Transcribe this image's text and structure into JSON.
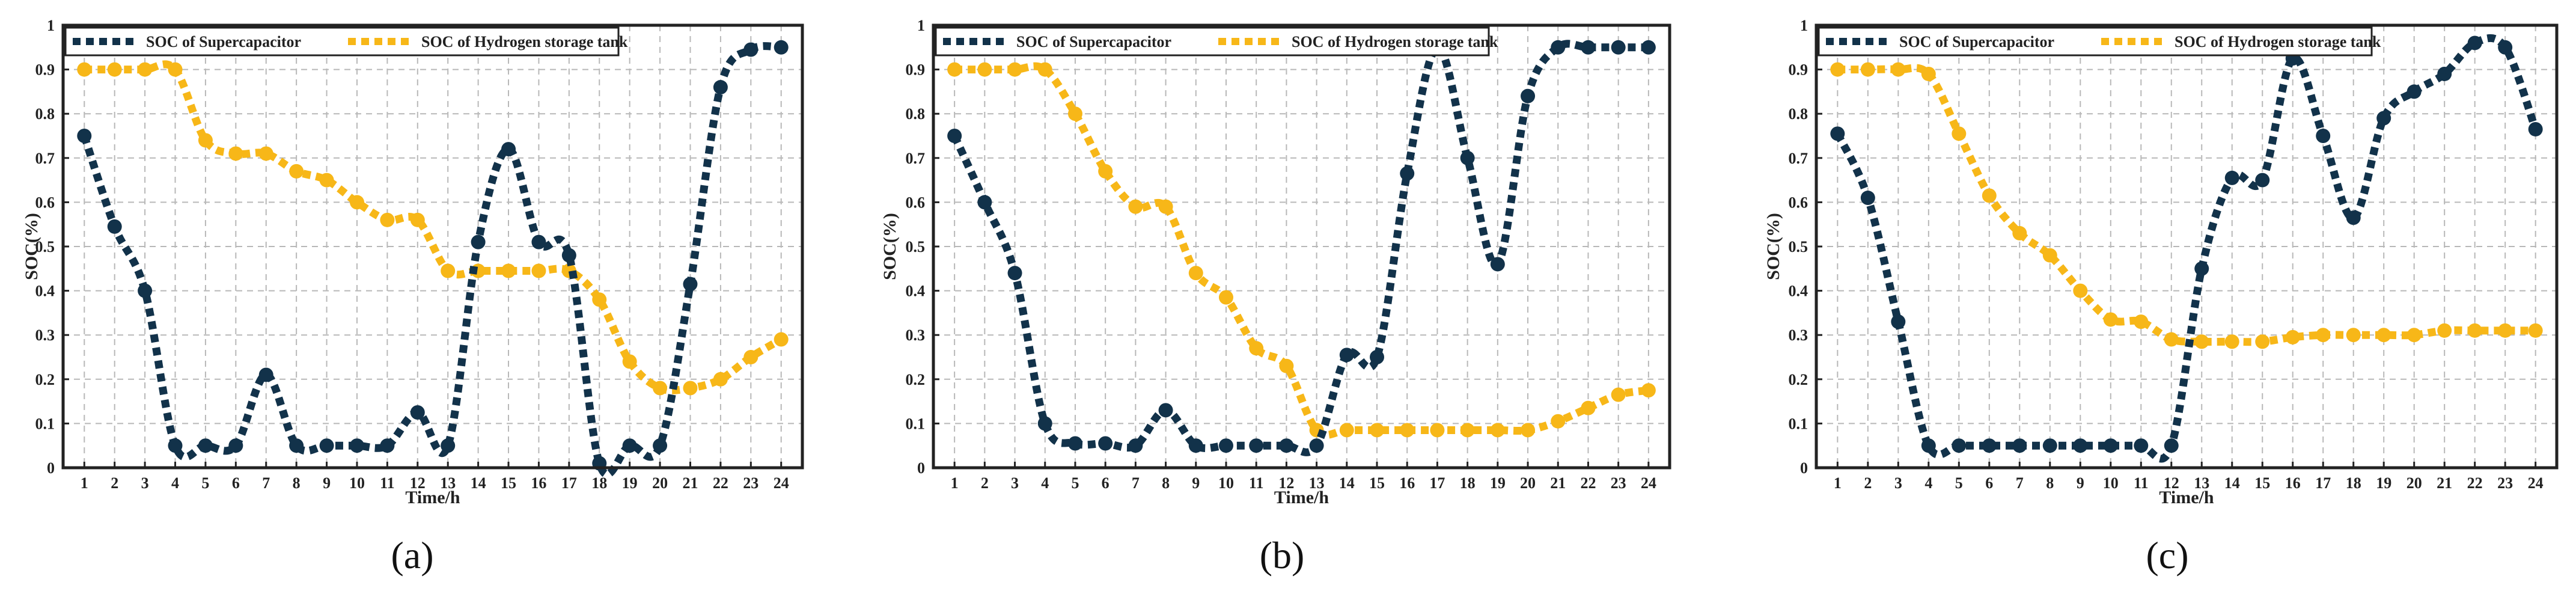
{
  "figure": {
    "panel_labels": [
      "(a)",
      "(b)",
      "(c)"
    ]
  },
  "colors": {
    "supercapacitor": "#12324a",
    "hydrogen": "#f7b718",
    "grid": "#b8b8b8",
    "frame": "#222222"
  },
  "chart_data": [
    {
      "type": "line",
      "panel": "(a)",
      "xlabel": "Time/h",
      "ylabel": "SOC(%)",
      "x": [
        1,
        2,
        3,
        4,
        5,
        6,
        7,
        8,
        9,
        10,
        11,
        12,
        13,
        14,
        15,
        16,
        17,
        18,
        19,
        20,
        21,
        22,
        23,
        24
      ],
      "xlim": [
        0.3,
        24.7
      ],
      "ylim": [
        0,
        1
      ],
      "yticks": [
        "0",
        "0.1",
        "0.2",
        "0.3",
        "0.4",
        "0.5",
        "0.6",
        "0.7",
        "0.8",
        "0.9",
        "1"
      ],
      "grid": true,
      "legend_position": "top-left",
      "series": [
        {
          "name": "SOC of Supercapacitor",
          "color_key": "supercapacitor",
          "values": [
            0.75,
            0.545,
            0.4,
            0.05,
            0.05,
            0.05,
            0.21,
            0.05,
            0.05,
            0.05,
            0.05,
            0.125,
            0.05,
            0.51,
            0.72,
            0.51,
            0.48,
            0.01,
            0.05,
            0.05,
            0.415,
            0.86,
            0.945,
            0.95
          ]
        },
        {
          "name": "SOC of Hydrogen storage tank",
          "color_key": "hydrogen",
          "values": [
            0.9,
            0.9,
            0.9,
            0.9,
            0.74,
            0.71,
            0.71,
            0.67,
            0.65,
            0.6,
            0.56,
            0.56,
            0.445,
            0.445,
            0.445,
            0.445,
            0.445,
            0.38,
            0.24,
            0.18,
            0.18,
            0.2,
            0.25,
            0.29
          ]
        }
      ]
    },
    {
      "type": "line",
      "panel": "(b)",
      "xlabel": "Time/h",
      "ylabel": "SOC(%)",
      "x": [
        1,
        2,
        3,
        4,
        5,
        6,
        7,
        8,
        9,
        10,
        11,
        12,
        13,
        14,
        15,
        16,
        17,
        18,
        19,
        20,
        21,
        22,
        23,
        24
      ],
      "xlim": [
        0.3,
        24.7
      ],
      "ylim": [
        0,
        1
      ],
      "yticks": [
        "0",
        "0.1",
        "0.2",
        "0.3",
        "0.4",
        "0.5",
        "0.6",
        "0.7",
        "0.8",
        "0.9",
        "1"
      ],
      "grid": true,
      "legend_position": "top-left",
      "series": [
        {
          "name": "SOC of Supercapacitor",
          "color_key": "supercapacitor",
          "values": [
            0.75,
            0.6,
            0.44,
            0.1,
            0.055,
            0.055,
            0.05,
            0.13,
            0.05,
            0.05,
            0.05,
            0.05,
            0.05,
            0.255,
            0.25,
            0.665,
            0.95,
            0.7,
            0.46,
            0.84,
            0.95,
            0.95,
            0.95,
            0.95
          ]
        },
        {
          "name": "SOC of Hydrogen storage tank",
          "color_key": "hydrogen",
          "values": [
            0.9,
            0.9,
            0.9,
            0.9,
            0.8,
            0.67,
            0.59,
            0.59,
            0.44,
            0.385,
            0.27,
            0.23,
            0.085,
            0.085,
            0.085,
            0.085,
            0.085,
            0.085,
            0.085,
            0.085,
            0.105,
            0.135,
            0.165,
            0.175
          ]
        }
      ]
    },
    {
      "type": "line",
      "panel": "(c)",
      "xlabel": "Time/h",
      "ylabel": "SOC(%)",
      "x": [
        1,
        2,
        3,
        4,
        5,
        6,
        7,
        8,
        9,
        10,
        11,
        12,
        13,
        14,
        15,
        16,
        17,
        18,
        19,
        20,
        21,
        22,
        23,
        24
      ],
      "xlim": [
        0.3,
        24.7
      ],
      "ylim": [
        0,
        1
      ],
      "yticks": [
        "0",
        "0.1",
        "0.2",
        "0.3",
        "0.4",
        "0.5",
        "0.6",
        "0.7",
        "0.8",
        "0.9",
        "1"
      ],
      "grid": true,
      "legend_position": "top-left",
      "series": [
        {
          "name": "SOC of Supercapacitor",
          "color_key": "supercapacitor",
          "values": [
            0.755,
            0.61,
            0.33,
            0.05,
            0.05,
            0.05,
            0.05,
            0.05,
            0.05,
            0.05,
            0.05,
            0.05,
            0.45,
            0.655,
            0.65,
            0.925,
            0.75,
            0.565,
            0.79,
            0.85,
            0.89,
            0.96,
            0.95,
            0.765
          ]
        },
        {
          "name": "SOC of Hydrogen storage tank",
          "color_key": "hydrogen",
          "values": [
            0.9,
            0.9,
            0.9,
            0.89,
            0.755,
            0.615,
            0.53,
            0.48,
            0.4,
            0.335,
            0.33,
            0.29,
            0.285,
            0.285,
            0.285,
            0.295,
            0.3,
            0.3,
            0.3,
            0.3,
            0.31,
            0.31,
            0.31,
            0.31
          ]
        }
      ]
    }
  ]
}
